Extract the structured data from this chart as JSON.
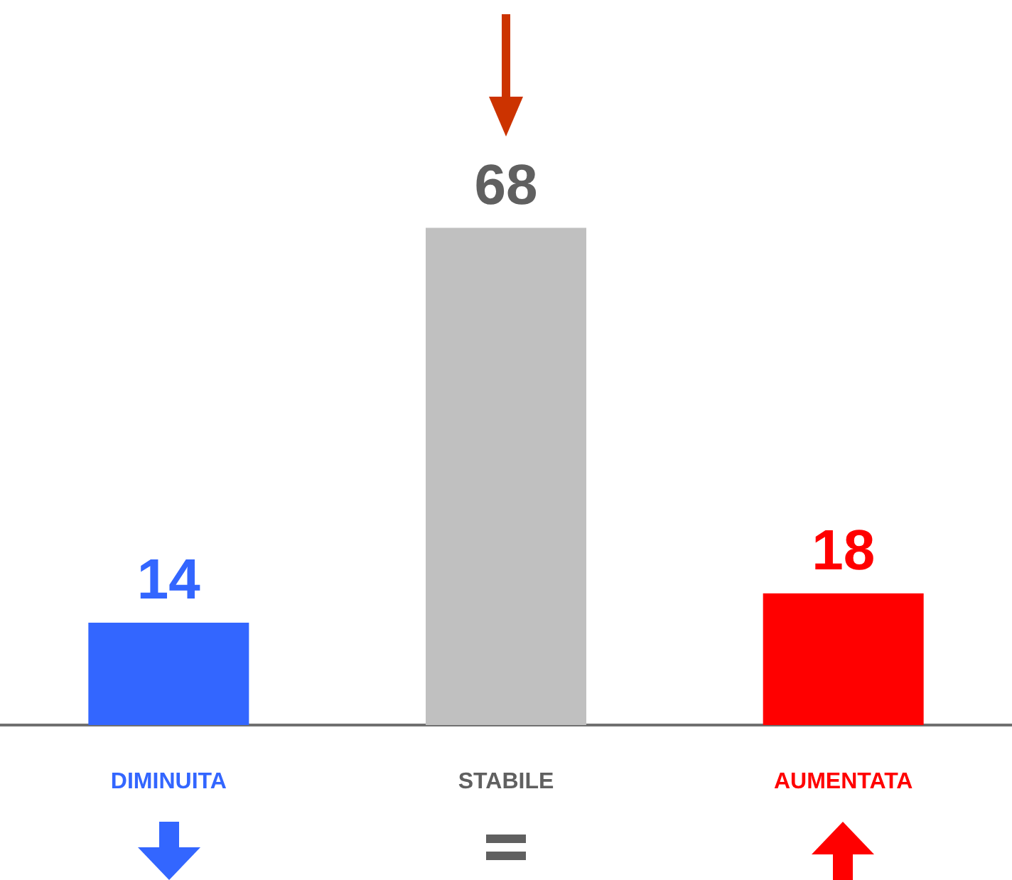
{
  "chart_data": {
    "type": "bar",
    "categories": [
      "DIMINUITA",
      "STABILE",
      "AUMENTATA"
    ],
    "values": [
      14,
      68,
      18
    ],
    "colors": [
      "#3366ff",
      "#c0c0c0",
      "#ff0000"
    ],
    "data_labels": true
  }
}
